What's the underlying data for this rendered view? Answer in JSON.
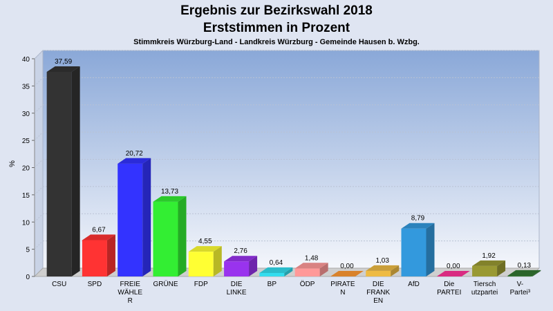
{
  "chart_data": {
    "type": "bar",
    "title": "Ergebnis zur Bezirkswahl 2018",
    "title_line2": "Erststimmen in Prozent",
    "subtitle": "Stimmkreis Würzburg-Land - Landkreis Würzburg - Gemeinde Hausen b. Wzbg.",
    "ylabel": "%",
    "ylim": [
      0,
      40
    ],
    "yticks": [
      0,
      5,
      10,
      15,
      20,
      25,
      30,
      35,
      40
    ],
    "grid": true,
    "categories": [
      [
        "CSU"
      ],
      [
        "SPD"
      ],
      [
        "FREIE",
        "WÄHLE",
        "R"
      ],
      [
        "GRÜNE"
      ],
      [
        "FDP"
      ],
      [
        "DIE",
        "LINKE"
      ],
      [
        "BP"
      ],
      [
        "ÖDP"
      ],
      [
        "PIRATE",
        "N"
      ],
      [
        "DIE",
        "FRANK",
        "EN"
      ],
      [
        "AfD"
      ],
      [
        "Die",
        "PARTEI"
      ],
      [
        "Tiersch",
        "utzpartei"
      ],
      [
        "V-",
        "Partei³"
      ]
    ],
    "values": [
      37.59,
      6.67,
      20.72,
      13.73,
      4.55,
      2.76,
      0.64,
      1.48,
      0.0,
      1.03,
      8.79,
      0.0,
      1.92,
      0.13
    ],
    "value_labels": [
      "37,59",
      "6,67",
      "20,72",
      "13,73",
      "4,55",
      "2,76",
      "0,64",
      "1,48",
      "0,00",
      "1,03",
      "8,79",
      "0,00",
      "1,92",
      "0,13"
    ],
    "colors": [
      "#333333",
      "#ff3333",
      "#3333ff",
      "#33ee33",
      "#ffff33",
      "#9933ee",
      "#33ddee",
      "#ff9999",
      "#ff9933",
      "#eebb44",
      "#3399dd",
      "#ff3399",
      "#999933",
      "#337733"
    ]
  }
}
